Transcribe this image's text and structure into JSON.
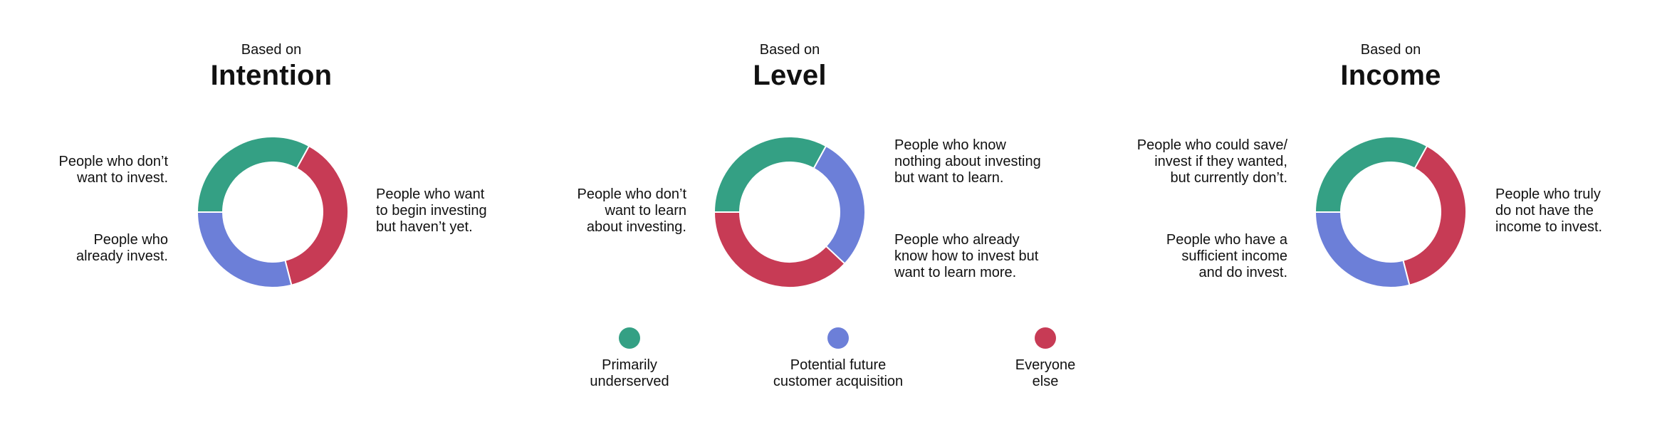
{
  "colors": {
    "green": "#34A084",
    "blue": "#6C7FD8",
    "red": "#C73B55"
  },
  "panels": [
    {
      "kicker": "Based on",
      "title": "Intention",
      "segments": [
        {
          "color": "green",
          "fraction": 0.33
        },
        {
          "color": "red",
          "fraction": 0.38
        },
        {
          "color": "blue",
          "fraction": 0.29
        }
      ],
      "annotations": [
        {
          "text": "People who don’t\nwant to invest."
        },
        {
          "text": "People who\nalready invest."
        },
        {
          "text": "People who want\nto begin investing\nbut haven’t yet."
        }
      ]
    },
    {
      "kicker": "Based on",
      "title": "Level",
      "segments": [
        {
          "color": "green",
          "fraction": 0.33
        },
        {
          "color": "blue",
          "fraction": 0.29
        },
        {
          "color": "red",
          "fraction": 0.38
        }
      ],
      "annotations": [
        {
          "text": "People who don’t\nwant to learn\nabout investing."
        },
        {
          "text": "People who know\nnothing about investing\nbut want to learn."
        },
        {
          "text": "People who already\nknow how to invest but\nwant to learn more."
        }
      ]
    },
    {
      "kicker": "Based on",
      "title": "Income",
      "segments": [
        {
          "color": "green",
          "fraction": 0.33
        },
        {
          "color": "red",
          "fraction": 0.38
        },
        {
          "color": "blue",
          "fraction": 0.29
        }
      ],
      "annotations": [
        {
          "text": "People who could save/\ninvest if they wanted,\nbut currently don’t."
        },
        {
          "text": "People who have a\nsufficient income\nand do invest."
        },
        {
          "text": "People who truly\ndo not have the\nincome to invest."
        }
      ]
    }
  ],
  "legend": [
    {
      "color": "green",
      "label": "Primarily\nunderserved"
    },
    {
      "color": "blue",
      "label": "Potential future\ncustomer acquisition"
    },
    {
      "color": "red",
      "label": "Everyone\nelse"
    }
  ]
}
